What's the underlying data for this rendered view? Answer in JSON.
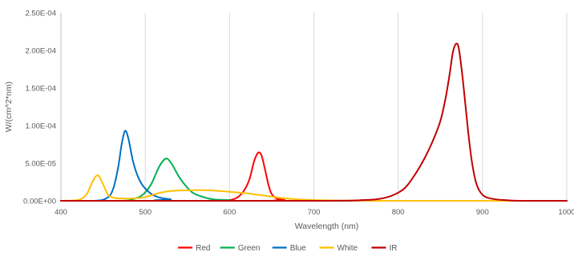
{
  "chart_data": {
    "type": "line",
    "title": "",
    "xlabel": "Wavelength (nm)",
    "ylabel": "W/(cm^2*nm)",
    "xlim": [
      400,
      1000
    ],
    "ylim": [
      0,
      0.00025
    ],
    "x_ticks": [
      400,
      500,
      600,
      700,
      800,
      900,
      1000
    ],
    "x_tick_labels": [
      "400",
      "500",
      "600",
      "700",
      "800",
      "900",
      "1000"
    ],
    "y_ticks": [
      0,
      5e-05,
      0.0001,
      0.00015,
      0.0002,
      0.00025
    ],
    "y_tick_labels": [
      "0.00E+00",
      "5.00E-05",
      "1.00E-04",
      "1.50E-04",
      "2.00E-04",
      "2.50E-04"
    ],
    "grid": {
      "vertical": true,
      "horizontal": false
    },
    "legend_position": "bottom",
    "series": [
      {
        "name": "Red",
        "color": "#ff0000",
        "points": [
          [
            400,
            0
          ],
          [
            580,
            0
          ],
          [
            600,
            1e-06
          ],
          [
            610,
            5e-06
          ],
          [
            618,
            1.5e-05
          ],
          [
            624,
            3e-05
          ],
          [
            629,
            5.2e-05
          ],
          [
            634,
            6.4e-05
          ],
          [
            638,
            6e-05
          ],
          [
            642,
            4.2e-05
          ],
          [
            646,
            2.2e-05
          ],
          [
            650,
            9e-06
          ],
          [
            656,
            3e-06
          ],
          [
            665,
            1e-06
          ],
          [
            680,
            0
          ],
          [
            1000,
            0
          ]
        ]
      },
      {
        "name": "Green",
        "color": "#00b050",
        "points": [
          [
            400,
            0
          ],
          [
            470,
            0
          ],
          [
            485,
            2e-06
          ],
          [
            497,
            8e-06
          ],
          [
            507,
            2.2e-05
          ],
          [
            515,
            4.2e-05
          ],
          [
            521,
            5.3e-05
          ],
          [
            526,
            5.6e-05
          ],
          [
            532,
            4.8e-05
          ],
          [
            540,
            3.2e-05
          ],
          [
            548,
            2e-05
          ],
          [
            556,
            1.1e-05
          ],
          [
            566,
            6e-06
          ],
          [
            580,
            2e-06
          ],
          [
            600,
            1e-06
          ],
          [
            620,
            0
          ],
          [
            1000,
            0
          ]
        ]
      },
      {
        "name": "Blue",
        "color": "#0070c0",
        "points": [
          [
            400,
            0
          ],
          [
            440,
            0
          ],
          [
            455,
            4e-06
          ],
          [
            462,
            1.6e-05
          ],
          [
            468,
            4.5e-05
          ],
          [
            472,
            7.5e-05
          ],
          [
            476,
            9.3e-05
          ],
          [
            480,
            8.3e-05
          ],
          [
            485,
            5.5e-05
          ],
          [
            490,
            3.6e-05
          ],
          [
            496,
            2.2e-05
          ],
          [
            505,
            1.1e-05
          ],
          [
            515,
            5e-06
          ],
          [
            530,
            2e-06
          ],
          [
            550,
            0
          ],
          [
            1000,
            0
          ]
        ]
      },
      {
        "name": "White",
        "color": "#ffc000",
        "points": [
          [
            400,
            0
          ],
          [
            420,
            1e-06
          ],
          [
            430,
            8e-06
          ],
          [
            436,
            2.2e-05
          ],
          [
            441,
            3.2e-05
          ],
          [
            445,
            3.3e-05
          ],
          [
            450,
            2.2e-05
          ],
          [
            456,
            8e-06
          ],
          [
            463,
            4e-06
          ],
          [
            472,
            3e-06
          ],
          [
            485,
            3e-06
          ],
          [
            500,
            5e-06
          ],
          [
            515,
            1e-05
          ],
          [
            530,
            1.3e-05
          ],
          [
            550,
            1.4e-05
          ],
          [
            575,
            1.4e-05
          ],
          [
            600,
            1.2e-05
          ],
          [
            620,
            1e-05
          ],
          [
            640,
            7e-06
          ],
          [
            660,
            4e-06
          ],
          [
            680,
            2e-06
          ],
          [
            700,
            1e-06
          ],
          [
            720,
            5e-07
          ],
          [
            780,
            0
          ],
          [
            1000,
            0
          ]
        ]
      },
      {
        "name": "IR",
        "color": "#c00000",
        "points": [
          [
            400,
            0
          ],
          [
            700,
            0
          ],
          [
            760,
            1e-06
          ],
          [
            780,
            3e-06
          ],
          [
            795,
            8e-06
          ],
          [
            808,
            1.7e-05
          ],
          [
            820,
            3.5e-05
          ],
          [
            832,
            5.8e-05
          ],
          [
            842,
            8.2e-05
          ],
          [
            850,
            0.000106
          ],
          [
            856,
            0.000135
          ],
          [
            861,
            0.000168
          ],
          [
            865,
            0.000198
          ],
          [
            869,
            0.000209
          ],
          [
            872,
            0.000202
          ],
          [
            876,
            0.000168
          ],
          [
            880,
            0.000125
          ],
          [
            884,
            8.2e-05
          ],
          [
            888,
            4.8e-05
          ],
          [
            893,
            2.2e-05
          ],
          [
            900,
            8e-06
          ],
          [
            910,
            3e-06
          ],
          [
            925,
            1e-06
          ],
          [
            950,
            0
          ],
          [
            1000,
            0
          ]
        ]
      }
    ]
  }
}
